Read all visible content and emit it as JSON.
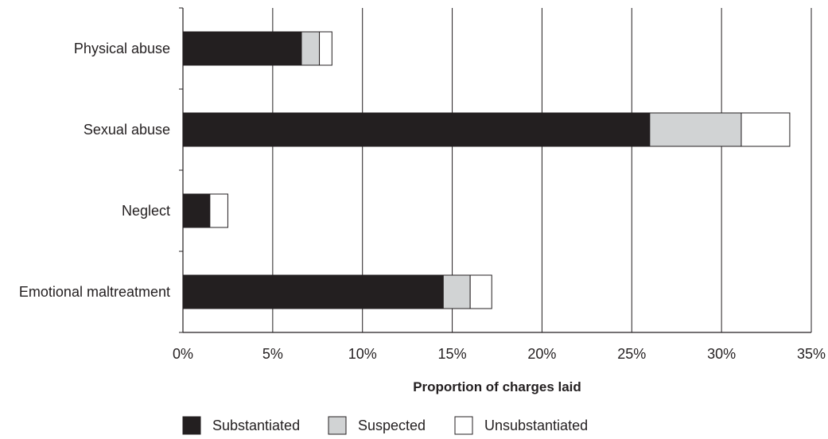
{
  "chart_data": {
    "type": "bar",
    "orientation": "horizontal",
    "stacked": true,
    "categories": [
      "Physical abuse",
      "Sexual abuse",
      "Neglect",
      "Emotional maltreatment"
    ],
    "series": [
      {
        "name": "Substantiated",
        "values": [
          6.6,
          26.0,
          1.5,
          14.5
        ],
        "color": "#231f20"
      },
      {
        "name": "Suspected",
        "values": [
          1.0,
          5.1,
          0.0,
          1.5
        ],
        "color": "#d1d3d4"
      },
      {
        "name": "Unsubstantiated",
        "values": [
          0.7,
          2.7,
          1.0,
          1.2
        ],
        "color": "#ffffff"
      }
    ],
    "x_ticks": [
      "0%",
      "5%",
      "10%",
      "15%",
      "20%",
      "25%",
      "30%",
      "35%"
    ],
    "xlim": [
      0,
      35
    ],
    "xlabel": "Proportion of charges laid",
    "ylabel": "",
    "title": "",
    "grid": "vertical",
    "legend_position": "bottom"
  }
}
